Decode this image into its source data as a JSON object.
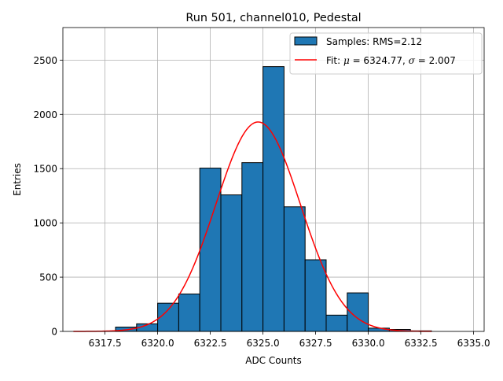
{
  "chart_data": {
    "type": "bar",
    "title": "Run 501, channel010, Pedestal",
    "xlabel": "ADC Counts",
    "ylabel": "Entries",
    "xlim": [
      6315.5,
      6335.5
    ],
    "ylim": [
      0,
      2800
    ],
    "grid": true,
    "legend_position": "top-right",
    "x_ticks": [
      6317.5,
      6320.0,
      6322.5,
      6325.0,
      6327.5,
      6330.0,
      6332.5,
      6335.0
    ],
    "x_tick_labels": [
      "6317.5",
      "6320.0",
      "6322.5",
      "6325.0",
      "6327.5",
      "6330.0",
      "6332.5",
      "6335.0"
    ],
    "y_ticks": [
      0,
      500,
      1000,
      1500,
      2000,
      2500
    ],
    "y_tick_labels": [
      "0",
      "500",
      "1000",
      "1500",
      "2000",
      "2500"
    ],
    "bin_edges": [
      6318,
      6319,
      6320,
      6321,
      6322,
      6323,
      6324,
      6325,
      6326,
      6327,
      6328,
      6329,
      6330,
      6331,
      6332,
      6333
    ],
    "values": [
      40,
      70,
      260,
      345,
      1505,
      1258,
      1555,
      2440,
      1148,
      660,
      150,
      355,
      30,
      18,
      5
    ],
    "histogram_color": "#1f77b4",
    "histogram_edge_color": "#000000",
    "fit": {
      "mu": 6324.77,
      "sigma": 2.007,
      "amplitude": 1930,
      "x_range": [
        6316,
        6333
      ],
      "color": "#ff0000"
    },
    "legend": {
      "samples_label": "Samples: RMS=2.12",
      "fit_prefix": "Fit: ",
      "mu_symbol": "μ",
      "fit_middle": " = 6324.77, ",
      "sigma_symbol": "σ",
      "fit_suffix": " = 2.007"
    }
  }
}
